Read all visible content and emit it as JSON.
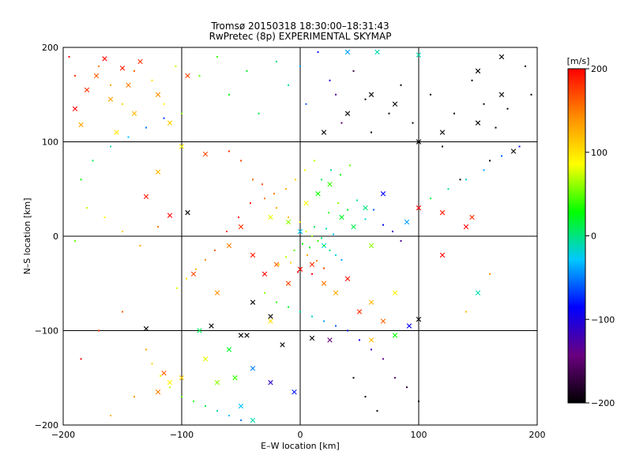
{
  "chart_data": {
    "type": "scatter",
    "title": "Tromsø 20150318 18:30:00–18:31:43",
    "subtitle": "RwPretec (8p) EXPERIMENTAL SKYMAP",
    "xlabel": "E–W location [km]",
    "ylabel": "N–S location [km]",
    "xlim": [
      -200,
      200
    ],
    "ylim": [
      -200,
      200
    ],
    "xticks": [
      "−200",
      "−100",
      "0",
      "100",
      "200"
    ],
    "yticks": [
      "−200",
      "−100",
      "0",
      "100",
      "200"
    ],
    "grid": true,
    "colorbar": {
      "label": "[m/s]",
      "range": [
        -200,
        200
      ],
      "ticks": [
        "200",
        "100",
        "0",
        "−100",
        "−200"
      ],
      "colormap": [
        "#000000",
        "#6a0080",
        "#0000ff",
        "#00c8ff",
        "#00ff00",
        "#ffff00",
        "#ff8c00",
        "#ff0000"
      ]
    },
    "series": [
      {
        "marker": "x",
        "points": [
          [
            -180,
            155,
            180
          ],
          [
            -172,
            170,
            160
          ],
          [
            -165,
            188,
            200
          ],
          [
            -160,
            145,
            130
          ],
          [
            -150,
            178,
            190
          ],
          [
            -145,
            160,
            150
          ],
          [
            -140,
            130,
            120
          ],
          [
            -135,
            185,
            180
          ],
          [
            -120,
            150,
            140
          ],
          [
            -110,
            120,
            110
          ],
          [
            -100,
            95,
            90
          ],
          [
            -95,
            170,
            170
          ],
          [
            -185,
            118,
            130
          ],
          [
            -190,
            135,
            200
          ],
          [
            -155,
            110,
            100
          ],
          [
            -130,
            42,
            190
          ],
          [
            -110,
            22,
            200
          ],
          [
            -80,
            87,
            170
          ],
          [
            -120,
            68,
            120
          ],
          [
            -60,
            -10,
            150
          ],
          [
            -50,
            10,
            180
          ],
          [
            -70,
            -60,
            140
          ],
          [
            -90,
            -40,
            170
          ],
          [
            -40,
            -20,
            190
          ],
          [
            -30,
            -40,
            200
          ],
          [
            -20,
            -30,
            160
          ],
          [
            -10,
            -50,
            170
          ],
          [
            0,
            -35,
            200
          ],
          [
            10,
            -30,
            180
          ],
          [
            20,
            -50,
            150
          ],
          [
            30,
            -60,
            130
          ],
          [
            40,
            -45,
            190
          ],
          [
            50,
            -80,
            180
          ],
          [
            60,
            -70,
            120
          ],
          [
            70,
            -90,
            160
          ],
          [
            80,
            -60,
            90
          ],
          [
            -45,
            -105,
            -200
          ],
          [
            -40,
            -70,
            -200
          ],
          [
            -25,
            -85,
            -200
          ],
          [
            -15,
            -115,
            -200
          ],
          [
            10,
            -108,
            -200
          ],
          [
            -130,
            -98,
            -200
          ],
          [
            20,
            110,
            -200
          ],
          [
            40,
            130,
            -200
          ],
          [
            60,
            150,
            -200
          ],
          [
            80,
            140,
            -200
          ],
          [
            100,
            100,
            -200
          ],
          [
            120,
            110,
            -200
          ],
          [
            150,
            120,
            -200
          ],
          [
            170,
            150,
            -200
          ],
          [
            180,
            90,
            -200
          ],
          [
            -95,
            25,
            -200
          ],
          [
            -75,
            -95,
            -200
          ],
          [
            -50,
            -105,
            -200
          ],
          [
            15,
            45,
            30
          ],
          [
            25,
            55,
            40
          ],
          [
            35,
            20,
            20
          ],
          [
            45,
            10,
            10
          ],
          [
            55,
            30,
            0
          ],
          [
            20,
            -10,
            -20
          ],
          [
            0,
            5,
            -30
          ],
          [
            -10,
            15,
            60
          ],
          [
            5,
            35,
            90
          ],
          [
            -25,
            20,
            80
          ],
          [
            60,
            -10,
            60
          ],
          [
            70,
            45,
            -90
          ],
          [
            90,
            15,
            -40
          ],
          [
            -25,
            -90,
            100
          ],
          [
            -40,
            -140,
            -50
          ],
          [
            -55,
            -150,
            40
          ],
          [
            -70,
            -155,
            60
          ],
          [
            -80,
            -130,
            80
          ],
          [
            -100,
            -150,
            110
          ],
          [
            -110,
            -155,
            90
          ],
          [
            -50,
            -180,
            -30
          ],
          [
            -40,
            -195,
            -10
          ],
          [
            150,
            -60,
            -10
          ],
          [
            145,
            20,
            180
          ],
          [
            120,
            25,
            190
          ],
          [
            100,
            30,
            200
          ],
          [
            92,
            -95,
            -90
          ],
          [
            100,
            -88,
            -200
          ],
          [
            80,
            -105,
            30
          ],
          [
            60,
            -110,
            120
          ],
          [
            25,
            -110,
            -150
          ],
          [
            -5,
            -165,
            -80
          ],
          [
            -25,
            -155,
            -110
          ],
          [
            -60,
            -120,
            20
          ],
          [
            -85,
            -100,
            10
          ],
          [
            -120,
            -165,
            150
          ],
          [
            -115,
            -145,
            160
          ],
          [
            40,
            195,
            -40
          ],
          [
            65,
            195,
            -10
          ],
          [
            100,
            192,
            -10
          ],
          [
            150,
            175,
            -200
          ],
          [
            170,
            190,
            -200
          ],
          [
            120,
            -20,
            200
          ],
          [
            140,
            10,
            200
          ]
        ]
      },
      {
        "marker": "dot",
        "points": [
          [
            -170,
            180,
            150
          ],
          [
            -160,
            160,
            130
          ],
          [
            -150,
            140,
            110
          ],
          [
            -140,
            175,
            160
          ],
          [
            -125,
            165,
            100
          ],
          [
            -115,
            140,
            90
          ],
          [
            -105,
            180,
            70
          ],
          [
            -100,
            130,
            60
          ],
          [
            -85,
            170,
            50
          ],
          [
            -70,
            190,
            40
          ],
          [
            -60,
            150,
            30
          ],
          [
            -45,
            175,
            20
          ],
          [
            -35,
            130,
            10
          ],
          [
            -20,
            185,
            0
          ],
          [
            -10,
            160,
            -10
          ],
          [
            0,
            180,
            -40
          ],
          [
            5,
            140,
            -60
          ],
          [
            15,
            195,
            -80
          ],
          [
            25,
            165,
            -100
          ],
          [
            30,
            150,
            -130
          ],
          [
            35,
            120,
            -150
          ],
          [
            45,
            175,
            -170
          ],
          [
            55,
            145,
            -190
          ],
          [
            60,
            110,
            -200
          ],
          [
            75,
            130,
            -200
          ],
          [
            85,
            160,
            -200
          ],
          [
            95,
            120,
            -200
          ],
          [
            110,
            150,
            -200
          ],
          [
            130,
            130,
            -200
          ],
          [
            145,
            165,
            -200
          ],
          [
            155,
            140,
            -200
          ],
          [
            165,
            115,
            -200
          ],
          [
            175,
            135,
            -200
          ],
          [
            120,
            95,
            -200
          ],
          [
            135,
            60,
            -200
          ],
          [
            160,
            80,
            -200
          ],
          [
            -60,
            90,
            180
          ],
          [
            -50,
            80,
            170
          ],
          [
            -40,
            60,
            160
          ],
          [
            -30,
            40,
            150
          ],
          [
            -20,
            30,
            130
          ],
          [
            -10,
            20,
            120
          ],
          [
            0,
            15,
            100
          ],
          [
            5,
            5,
            80
          ],
          [
            10,
            0,
            60
          ],
          [
            15,
            -5,
            40
          ],
          [
            20,
            -10,
            20
          ],
          [
            25,
            -15,
            0
          ],
          [
            30,
            -20,
            -20
          ],
          [
            35,
            -25,
            -40
          ],
          [
            12,
            10,
            10
          ],
          [
            18,
            -2,
            5
          ],
          [
            8,
            -12,
            20
          ],
          [
            22,
            8,
            -10
          ],
          [
            28,
            2,
            -30
          ],
          [
            2,
            -8,
            30
          ],
          [
            -5,
            -15,
            50
          ],
          [
            -12,
            -22,
            70
          ],
          [
            -18,
            -30,
            90
          ],
          [
            -8,
            -28,
            110
          ],
          [
            6,
            -20,
            130
          ],
          [
            14,
            -26,
            150
          ],
          [
            20,
            -34,
            170
          ],
          [
            -2,
            -38,
            190
          ],
          [
            10,
            -40,
            200
          ],
          [
            24,
            25,
            40
          ],
          [
            32,
            35,
            60
          ],
          [
            40,
            28,
            20
          ],
          [
            48,
            38,
            0
          ],
          [
            55,
            18,
            -20
          ],
          [
            62,
            28,
            -60
          ],
          [
            70,
            12,
            -90
          ],
          [
            78,
            5,
            -110
          ],
          [
            85,
            -5,
            -130
          ],
          [
            18,
            60,
            10
          ],
          [
            26,
            70,
            -5
          ],
          [
            34,
            65,
            30
          ],
          [
            42,
            75,
            50
          ],
          [
            12,
            80,
            70
          ],
          [
            4,
            70,
            90
          ],
          [
            -4,
            60,
            110
          ],
          [
            -12,
            50,
            130
          ],
          [
            -22,
            45,
            150
          ],
          [
            -32,
            55,
            170
          ],
          [
            -42,
            35,
            190
          ],
          [
            -52,
            20,
            200
          ],
          [
            -62,
            5,
            180
          ],
          [
            -72,
            -15,
            160
          ],
          [
            -80,
            -25,
            140
          ],
          [
            -88,
            -35,
            120
          ],
          [
            -96,
            -45,
            100
          ],
          [
            -104,
            -55,
            80
          ],
          [
            -30,
            -60,
            60
          ],
          [
            -20,
            -70,
            40
          ],
          [
            -10,
            -75,
            20
          ],
          [
            0,
            -80,
            0
          ],
          [
            10,
            -85,
            -20
          ],
          [
            20,
            -90,
            -40
          ],
          [
            30,
            -95,
            -60
          ],
          [
            40,
            -100,
            -80
          ],
          [
            50,
            -110,
            -100
          ],
          [
            60,
            -120,
            -120
          ],
          [
            70,
            -130,
            -140
          ],
          [
            80,
            -150,
            -160
          ],
          [
            90,
            -160,
            -180
          ],
          [
            100,
            -175,
            -200
          ],
          [
            45,
            -150,
            -200
          ],
          [
            55,
            -170,
            -200
          ],
          [
            65,
            -185,
            -200
          ],
          [
            -130,
            -120,
            130
          ],
          [
            -125,
            -135,
            110
          ],
          [
            -118,
            -148,
            90
          ],
          [
            -110,
            -160,
            70
          ],
          [
            -100,
            -170,
            50
          ],
          [
            -90,
            -175,
            30
          ],
          [
            -80,
            -180,
            10
          ],
          [
            -70,
            -185,
            -10
          ],
          [
            -60,
            -190,
            -30
          ],
          [
            -50,
            -195,
            -50
          ],
          [
            -120,
            10,
            150
          ],
          [
            -135,
            -10,
            130
          ],
          [
            -150,
            5,
            110
          ],
          [
            -165,
            20,
            90
          ],
          [
            -180,
            30,
            70
          ],
          [
            -190,
            -5,
            50
          ],
          [
            -185,
            60,
            30
          ],
          [
            -175,
            80,
            10
          ],
          [
            -160,
            95,
            -10
          ],
          [
            -145,
            105,
            -30
          ],
          [
            -130,
            115,
            -50
          ],
          [
            -115,
            125,
            -70
          ],
          [
            110,
            40,
            20
          ],
          [
            125,
            50,
            0
          ],
          [
            140,
            60,
            -20
          ],
          [
            155,
            70,
            -40
          ],
          [
            170,
            85,
            -60
          ],
          [
            185,
            95,
            -80
          ],
          [
            190,
            180,
            -200
          ],
          [
            -195,
            190,
            200
          ],
          [
            -190,
            170,
            180
          ],
          [
            195,
            150,
            -200
          ],
          [
            140,
            -80,
            120
          ],
          [
            160,
            -40,
            140
          ],
          [
            -150,
            -80,
            160
          ],
          [
            -170,
            -100,
            180
          ],
          [
            -185,
            -130,
            200
          ],
          [
            -140,
            -170,
            140
          ],
          [
            -160,
            -190,
            120
          ]
        ]
      }
    ]
  }
}
